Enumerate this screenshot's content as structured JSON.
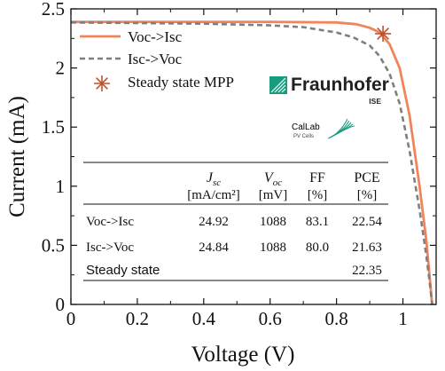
{
  "chart_data": {
    "type": "line",
    "xlabel": "Voltage (V)",
    "ylabel": "Current (mA)",
    "xlim": [
      0,
      1.1
    ],
    "ylim": [
      0,
      2.5
    ],
    "x_ticks": [
      0,
      0.2,
      0.4,
      0.6,
      0.8,
      1
    ],
    "x_tick_labels": [
      "0",
      "0.2",
      "0.4",
      "0.6",
      "0.8",
      "1"
    ],
    "y_ticks": [
      0,
      0.5,
      1,
      1.5,
      2,
      2.5
    ],
    "y_tick_labels": [
      "0",
      "0.5",
      "1",
      "1.5",
      "2",
      "2.5"
    ],
    "grid": false,
    "legend_position": "top-left",
    "series": [
      {
        "name": "Voc->Isc",
        "style": "solid",
        "color": "#f0855b",
        "x": [
          0,
          0.2,
          0.4,
          0.6,
          0.8,
          0.86,
          0.9,
          0.93,
          0.96,
          0.99,
          1.02,
          1.05,
          1.07,
          1.08,
          1.088
        ],
        "y": [
          2.39,
          2.39,
          2.39,
          2.39,
          2.385,
          2.37,
          2.34,
          2.3,
          2.2,
          2.0,
          1.6,
          1.0,
          0.55,
          0.25,
          0.0
        ]
      },
      {
        "name": "Isc->Voc",
        "style": "dashed",
        "color": "#7f7f7f",
        "x": [
          0,
          0.2,
          0.4,
          0.6,
          0.7,
          0.8,
          0.85,
          0.9,
          0.93,
          0.96,
          0.99,
          1.02,
          1.05,
          1.07,
          1.08,
          1.088
        ],
        "y": [
          2.385,
          2.38,
          2.375,
          2.36,
          2.345,
          2.3,
          2.26,
          2.19,
          2.1,
          1.95,
          1.7,
          1.3,
          0.8,
          0.42,
          0.2,
          0.0
        ]
      }
    ],
    "markers": [
      {
        "name": "Steady state MPP",
        "symbol": "asterisk",
        "color": "#c0502e",
        "x": 0.94,
        "y": 2.29
      }
    ],
    "legend": [
      {
        "label": "Voc->Isc",
        "style": "solid",
        "color": "#f0855b"
      },
      {
        "label": "Isc->Voc",
        "style": "dashed",
        "color": "#7f7f7f"
      },
      {
        "label": "Steady state MPP",
        "style": "marker",
        "color": "#c0502e"
      }
    ],
    "table": {
      "headers": [
        {
          "symbol": "J",
          "sub": "sc",
          "unit": "[mA/cm²]"
        },
        {
          "symbol": "V",
          "sub": "oc",
          "unit": "[mV]"
        },
        {
          "symbol": "FF",
          "sub": "",
          "unit": "[%]"
        },
        {
          "symbol": "PCE",
          "sub": "",
          "unit": "[%]"
        }
      ],
      "rows": [
        {
          "label": "Voc->Isc",
          "values": [
            "24.92",
            "1088",
            "83.1",
            "22.54"
          ]
        },
        {
          "label": "Isc->Voc",
          "values": [
            "24.84",
            "1088",
            "80.0",
            "21.63"
          ]
        },
        {
          "label": "Steady state",
          "values": [
            "",
            "",
            "",
            "22.35"
          ]
        }
      ]
    }
  },
  "logos": {
    "fraunhofer": {
      "name": "Fraunhofer",
      "sub": "ISE",
      "color": "#179c7d"
    },
    "callab": {
      "name": "CalLab",
      "sub": "PV Cells",
      "color": "#179c7d"
    }
  }
}
